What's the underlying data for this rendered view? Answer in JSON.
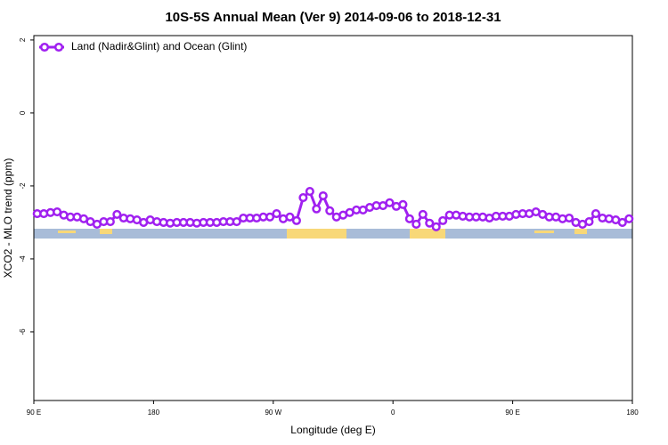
{
  "chart_data": {
    "type": "line",
    "title": "10S-5S Annual Mean (Ver 9)   2014-09-06 to 2018-12-31",
    "xlabel": "Longitude (deg E)",
    "ylabel": "XCO2 - MLO trend (ppm)",
    "xlim": [
      90,
      540
    ],
    "ylim": [
      -7.88,
      2.12
    ],
    "xticks": [
      {
        "value": 90,
        "label": "90 E"
      },
      180,
      {
        "value": 270,
        "label": "90 W"
      },
      {
        "value": 360,
        "label": "0"
      },
      {
        "value": 450,
        "label": "90 E"
      },
      {
        "value": 540,
        "label": "180"
      }
    ],
    "yticks": [
      2,
      0,
      -2,
      -4,
      -6
    ],
    "legend": "top-left",
    "x": [
      92.5,
      97.5,
      102.5,
      107.5,
      112.5,
      117.5,
      122.5,
      127.5,
      132.5,
      137.5,
      142.5,
      147.5,
      152.5,
      157.5,
      162.5,
      167.5,
      172.5,
      177.5,
      182.5,
      187.5,
      192.5,
      197.5,
      202.5,
      207.5,
      212.5,
      217.5,
      222.5,
      227.5,
      232.5,
      237.5,
      242.5,
      247.5,
      252.5,
      257.5,
      262.5,
      267.5,
      272.5,
      277.5,
      282.5,
      287.5,
      292.5,
      297.5,
      302.5,
      307.5,
      312.5,
      317.5,
      322.5,
      327.5,
      332.5,
      337.5,
      342.5,
      347.5,
      352.5,
      357.5,
      362.5,
      367.5,
      372.5,
      377.5,
      382.5,
      387.5,
      392.5,
      397.5,
      402.5,
      407.5,
      412.5,
      417.5,
      422.5,
      427.5,
      432.5,
      437.5,
      442.5,
      447.5,
      452.5,
      457.5,
      462.5,
      467.5,
      472.5,
      477.5,
      482.5,
      487.5,
      492.5,
      497.5,
      502.5,
      507.5,
      512.5,
      517.5,
      522.5,
      527.5,
      532.5,
      537.5
    ],
    "series": [
      {
        "name": "Land (Nadir&Glint) and Ocean (Glint)",
        "color": "#a020f0",
        "values": [
          -2.76,
          -2.76,
          -2.73,
          -2.71,
          -2.8,
          -2.85,
          -2.85,
          -2.9,
          -2.98,
          -3.05,
          -2.98,
          -2.98,
          -2.78,
          -2.88,
          -2.9,
          -2.93,
          -3.0,
          -2.93,
          -2.98,
          -3.0,
          -3.02,
          -3.0,
          -3.0,
          -3.0,
          -3.02,
          -3.0,
          -3.0,
          -3.0,
          -2.98,
          -2.98,
          -2.98,
          -2.88,
          -2.88,
          -2.88,
          -2.85,
          -2.85,
          -2.76,
          -2.9,
          -2.85,
          -2.95,
          -2.32,
          -2.15,
          -2.63,
          -2.27,
          -2.68,
          -2.85,
          -2.8,
          -2.73,
          -2.66,
          -2.66,
          -2.59,
          -2.54,
          -2.54,
          -2.46,
          -2.56,
          -2.51,
          -2.9,
          -3.05,
          -2.78,
          -3.02,
          -3.12,
          -2.95,
          -2.8,
          -2.8,
          -2.83,
          -2.85,
          -2.85,
          -2.85,
          -2.88,
          -2.83,
          -2.83,
          -2.83,
          -2.78,
          -2.76,
          -2.76,
          -2.71,
          -2.78,
          -2.85,
          -2.85,
          -2.9,
          -2.88,
          -3.0,
          -3.05,
          -2.98,
          -2.76,
          -2.88,
          -2.9,
          -2.93,
          -3.0,
          -2.9
        ]
      }
    ]
  }
}
